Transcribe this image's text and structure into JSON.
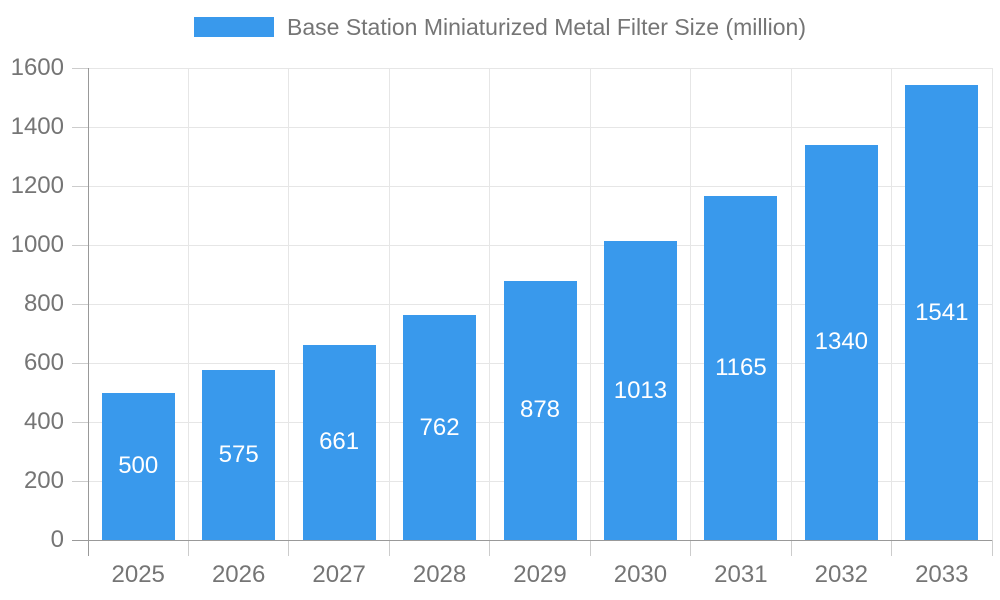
{
  "legend": {
    "label": "Base Station Miniaturized Metal Filter Size (million)"
  },
  "chart_data": {
    "type": "bar",
    "title": "",
    "xlabel": "",
    "ylabel": "",
    "categories": [
      "2025",
      "2026",
      "2027",
      "2028",
      "2029",
      "2030",
      "2031",
      "2032",
      "2033"
    ],
    "series": [
      {
        "name": "Base Station Miniaturized Metal Filter Size (million)",
        "values": [
          500,
          575,
          661,
          762,
          878,
          1013,
          1165,
          1340,
          1541
        ],
        "color": "#3999EC"
      }
    ],
    "ylim": [
      0,
      1600
    ],
    "ytick_step": 200,
    "yticks": [
      "0",
      "200",
      "400",
      "600",
      "800",
      "1000",
      "1200",
      "1400",
      "1600"
    ],
    "grid": true,
    "legend_position": "top",
    "value_labels": "inside-center"
  },
  "colors": {
    "bar": "#3999EC",
    "grid": "#E6E6E6",
    "tick": "#CCCCCC",
    "axis": "#999999",
    "label_text": "#757575",
    "value_label_text": "#FFFFFF",
    "background": "#FFFFFF"
  }
}
